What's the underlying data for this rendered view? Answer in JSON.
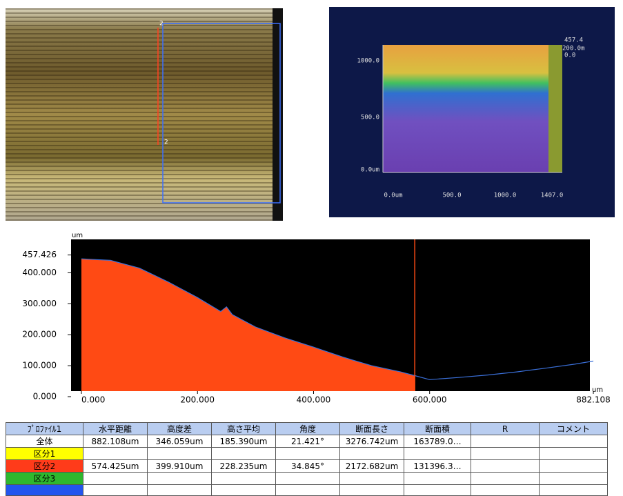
{
  "microscope": {
    "markers": [
      "2",
      "2"
    ]
  },
  "height_map": {
    "y_labels": [
      "1000.0",
      "500.0",
      "0.0um"
    ],
    "x_labels": [
      "0.0um",
      "500.0",
      "1000.0",
      "1407.0"
    ],
    "scale_labels": [
      "457.4",
      "200.0m",
      "0.0"
    ]
  },
  "chart_data": {
    "type": "area",
    "x_unit": "um",
    "y_unit": "um",
    "x": [
      0,
      50,
      100,
      150,
      200,
      240,
      250,
      260,
      300,
      350,
      400,
      450,
      500,
      550,
      574.425,
      600,
      650,
      700,
      750,
      800,
      850,
      882.108
    ],
    "series": [
      {
        "color": "#ff4a14",
        "fill": true,
        "values": [
          445,
          440,
          415,
          370,
          320,
          275,
          290,
          265,
          225,
          190,
          160,
          128,
          100,
          80,
          68,
          null,
          null,
          null,
          null,
          null,
          null,
          null
        ]
      },
      {
        "color": "#3a6fd8",
        "fill": false,
        "values": [
          445,
          440,
          415,
          370,
          320,
          275,
          290,
          265,
          225,
          190,
          160,
          128,
          100,
          80,
          68,
          55,
          62,
          70,
          80,
          92,
          105,
          115
        ]
      }
    ],
    "cursor_x": 574.425,
    "cursor_color": "#ff4a14",
    "xlim": [
      0,
      882.108
    ],
    "ylim": [
      0,
      490
    ],
    "xticks": [
      {
        "value": 0,
        "label": "0.000"
      },
      {
        "value": 200,
        "label": "200.000"
      },
      {
        "value": 400,
        "label": "400.000"
      },
      {
        "value": 600,
        "label": "600.000"
      },
      {
        "value": 882.108,
        "label": "882.108"
      }
    ],
    "yticks": [
      {
        "value": 0,
        "label": "0.000"
      },
      {
        "value": 100,
        "label": "100.000"
      },
      {
        "value": 200,
        "label": "200.000"
      },
      {
        "value": 300,
        "label": "300.000"
      },
      {
        "value": 400,
        "label": "400.000"
      },
      {
        "value": 457.426,
        "label": "457.426"
      }
    ]
  },
  "table": {
    "columns": [
      "ﾌﾟﾛﾌｧｲﾙ1",
      "水平距離",
      "高度差",
      "高さ平均",
      "角度",
      "断面長さ",
      "断面積",
      "R",
      "コメント"
    ],
    "rows": [
      {
        "label": "全体",
        "color": "#ffffff",
        "cells": [
          "882.108um",
          "346.059um",
          "185.390um",
          "21.421°",
          "3276.742um",
          "163789.0…"
        ]
      },
      {
        "label": "区分1",
        "color": "#ffff00"
      },
      {
        "label": "区分2",
        "color": "#ff3b1a",
        "cells": [
          "574.425um",
          "399.910um",
          "228.235um",
          "34.845°",
          "2172.682um",
          "131396.3…"
        ]
      },
      {
        "label": "区分3",
        "color": "#2eb82e"
      },
      {
        "color": "#2255ee"
      }
    ]
  }
}
